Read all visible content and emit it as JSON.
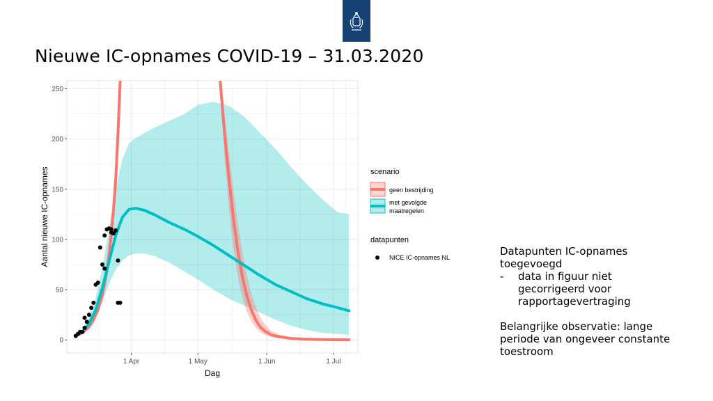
{
  "title": "Nieuwe IC-opnames COVID-19 – 31.03.2020",
  "notes": {
    "heading_lines": [
      "Datapunten IC-opnames",
      "toegevoegd"
    ],
    "bullet": {
      "marker": "-",
      "lines": [
        "data in figuur niet",
        "gecorrigeerd voor",
        "rapportagevertraging"
      ]
    },
    "observation_lines": [
      "Belangrijke observatie: lange",
      "periode van ongeveer constante",
      "toestroom"
    ]
  },
  "colors": {
    "red": "#f8766d",
    "teal": "#00bfc4",
    "band_red": "#f8766d",
    "band_teal": "#00bfc4",
    "panel_bg": "#ffffff",
    "grid": "#ebebeb",
    "logo_bg": "#154273"
  },
  "icons": {
    "logo": "rijksoverheid-crest-icon"
  },
  "chart_data": {
    "type": "line",
    "xlabel": "Dag",
    "ylabel": "Aantal nieuwe IC-opnames",
    "x_tick_labels": [
      "1 Apr",
      "1 May",
      "1 Jun",
      "1 Jul"
    ],
    "y_tick_labels": [
      "0",
      "50",
      "100",
      "150",
      "200",
      "250"
    ],
    "x_ticks": [
      "2020-04-01",
      "2020-05-01",
      "2020-06-01",
      "2020-07-01"
    ],
    "y_ticks": [
      0,
      50,
      100,
      150,
      200,
      250
    ],
    "xlim": [
      "2020-03-03",
      "2020-07-12"
    ],
    "ylim": [
      -13,
      258
    ],
    "grid": true,
    "legend_placement": "right",
    "legends": [
      {
        "title": "scenario",
        "entries": [
          {
            "key": "geen_bestrijding",
            "lines": [
              "geen bestrijding"
            ]
          },
          {
            "key": "met_gevolgde_maatregelen",
            "lines": [
              "met gevolgde",
              "maatregelen"
            ]
          }
        ]
      },
      {
        "title": "datapunten",
        "entries": [
          {
            "key": "nice",
            "lines": [
              "NICE IC-opnames NL"
            ]
          }
        ]
      }
    ],
    "series": [
      {
        "key": "geen_bestrijding",
        "name": "geen bestrijding",
        "style": "line_with_band",
        "segments": [
          {
            "x": [
              "2020-03-07",
              "2020-03-10",
              "2020-03-13",
              "2020-03-15",
              "2020-03-17",
              "2020-03-19",
              "2020-03-21",
              "2020-03-22",
              "2020-03-23",
              "2020-03-24",
              "2020-03-25",
              "2020-03-26",
              "2020-03-27"
            ],
            "y": [
              4,
              7,
              13,
              20,
              30,
              45,
              68,
              85,
              105,
              130,
              160,
              205,
              258
            ],
            "lower": [
              3,
              6,
              11,
              17,
              26,
              40,
              60,
              76,
              95,
              118,
              146,
              188,
              240
            ],
            "upper": [
              5,
              8,
              15,
              23,
              34,
              50,
              76,
              95,
              116,
              143,
              176,
              224,
              258
            ]
          },
          {
            "x": [
              "2020-05-11",
              "2020-05-13",
              "2020-05-15",
              "2020-05-17",
              "2020-05-19",
              "2020-05-21",
              "2020-05-23",
              "2020-05-25",
              "2020-05-27",
              "2020-05-29",
              "2020-05-31",
              "2020-06-03",
              "2020-06-07",
              "2020-06-12",
              "2020-06-18",
              "2020-06-25",
              "2020-07-02",
              "2020-07-08"
            ],
            "y": [
              258,
              205,
              160,
              120,
              88,
              63,
              44,
              30,
              20,
              13,
              9,
              5,
              3,
              1.5,
              0.8,
              0.4,
              0.2,
              0.1
            ],
            "lower": [
              258,
              182,
              130,
              90,
              62,
              42,
              28,
              19,
              12,
              8,
              5,
              3,
              1.5,
              0.8,
              0.4,
              0.2,
              0.1,
              0
            ],
            "upper": [
              258,
              225,
              185,
              148,
              115,
              87,
              64,
              46,
              33,
              23,
              16,
              9,
              5,
              2.5,
              1.2,
              0.6,
              0.3,
              0.2
            ]
          }
        ]
      },
      {
        "key": "met_gevolgde_maatregelen",
        "name": "met gevolgde maatregelen",
        "style": "line_with_band",
        "x": [
          "2020-03-07",
          "2020-03-10",
          "2020-03-13",
          "2020-03-16",
          "2020-03-19",
          "2020-03-22",
          "2020-03-25",
          "2020-03-28",
          "2020-03-31",
          "2020-04-03",
          "2020-04-07",
          "2020-04-12",
          "2020-04-18",
          "2020-04-25",
          "2020-05-01",
          "2020-05-08",
          "2020-05-15",
          "2020-05-22",
          "2020-05-29",
          "2020-06-05",
          "2020-06-12",
          "2020-06-19",
          "2020-06-26",
          "2020-07-03",
          "2020-07-08"
        ],
        "y": [
          4,
          8,
          16,
          30,
          52,
          78,
          104,
          122,
          130,
          131,
          129,
          124,
          117,
          110,
          103,
          94,
          84,
          74,
          64,
          55,
          48,
          41,
          36,
          32,
          29
        ],
        "lower": [
          3,
          6,
          12,
          22,
          38,
          56,
          70,
          79,
          84,
          86,
          86,
          83,
          77,
          68,
          60,
          50,
          41,
          34,
          27,
          20,
          14,
          10,
          7,
          6,
          5
        ],
        "upper": [
          5,
          10,
          22,
          42,
          72,
          110,
          150,
          180,
          196,
          201,
          206,
          212,
          218,
          225,
          234,
          237,
          233,
          222,
          206,
          190,
          172,
          155,
          140,
          127,
          125
        ]
      },
      {
        "key": "nice",
        "name": "NICE IC-opnames NL",
        "style": "points",
        "x": [
          "2020-03-07",
          "2020-03-08",
          "2020-03-09",
          "2020-03-10",
          "2020-03-11",
          "2020-03-11",
          "2020-03-12",
          "2020-03-13",
          "2020-03-14",
          "2020-03-15",
          "2020-03-16",
          "2020-03-17",
          "2020-03-18",
          "2020-03-19",
          "2020-03-20",
          "2020-03-20",
          "2020-03-21",
          "2020-03-22",
          "2020-03-23",
          "2020-03-23",
          "2020-03-24",
          "2020-03-25",
          "2020-03-26",
          "2020-03-26",
          "2020-03-27"
        ],
        "y": [
          4,
          6,
          8,
          8,
          12,
          22,
          18,
          25,
          32,
          37,
          55,
          57,
          92,
          75,
          71,
          104,
          110,
          111,
          107,
          110,
          106,
          109,
          79,
          37,
          37
        ]
      }
    ]
  }
}
